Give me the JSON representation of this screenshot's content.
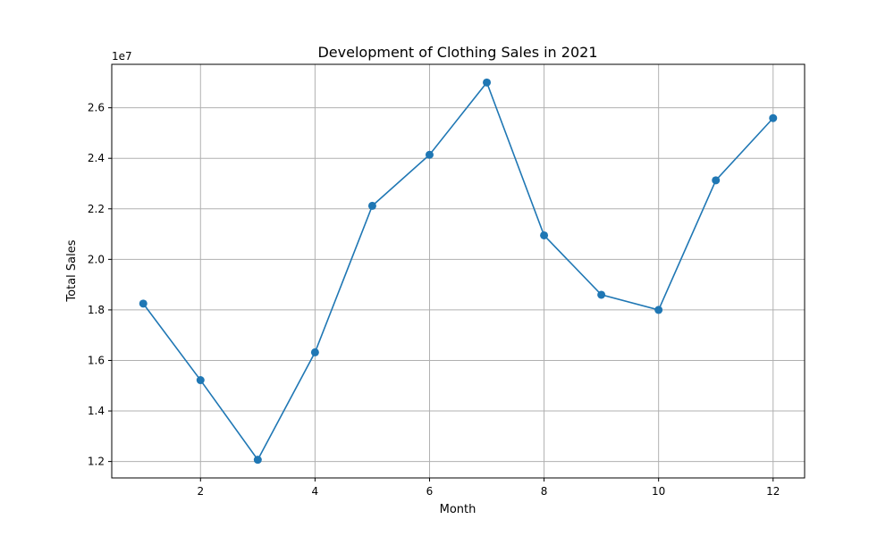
{
  "chart_data": {
    "type": "line",
    "title": "Development of Clothing Sales in 2021",
    "xlabel": "Month",
    "ylabel": "Total Sales",
    "y_offset_label": "1e7",
    "x": [
      1,
      2,
      3,
      4,
      5,
      6,
      7,
      8,
      9,
      10,
      11,
      12
    ],
    "series": [
      {
        "values": [
          18250000,
          15220000,
          12070000,
          16320000,
          22120000,
          24140000,
          27000000,
          20950000,
          18600000,
          18000000,
          23130000,
          25590000
        ]
      }
    ],
    "xlim": [
      0.45,
      12.55
    ],
    "ylim": [
      11350000,
      27720000
    ],
    "xticks": [
      2,
      4,
      6,
      8,
      10,
      12
    ],
    "yticks": [
      12000000,
      14000000,
      16000000,
      18000000,
      20000000,
      22000000,
      24000000,
      26000000
    ],
    "ytick_labels": [
      "1.2",
      "1.4",
      "1.6",
      "1.8",
      "2.0",
      "2.2",
      "2.4",
      "2.6"
    ],
    "grid": true,
    "line_color": "#1f77b4",
    "marker": "circle"
  }
}
